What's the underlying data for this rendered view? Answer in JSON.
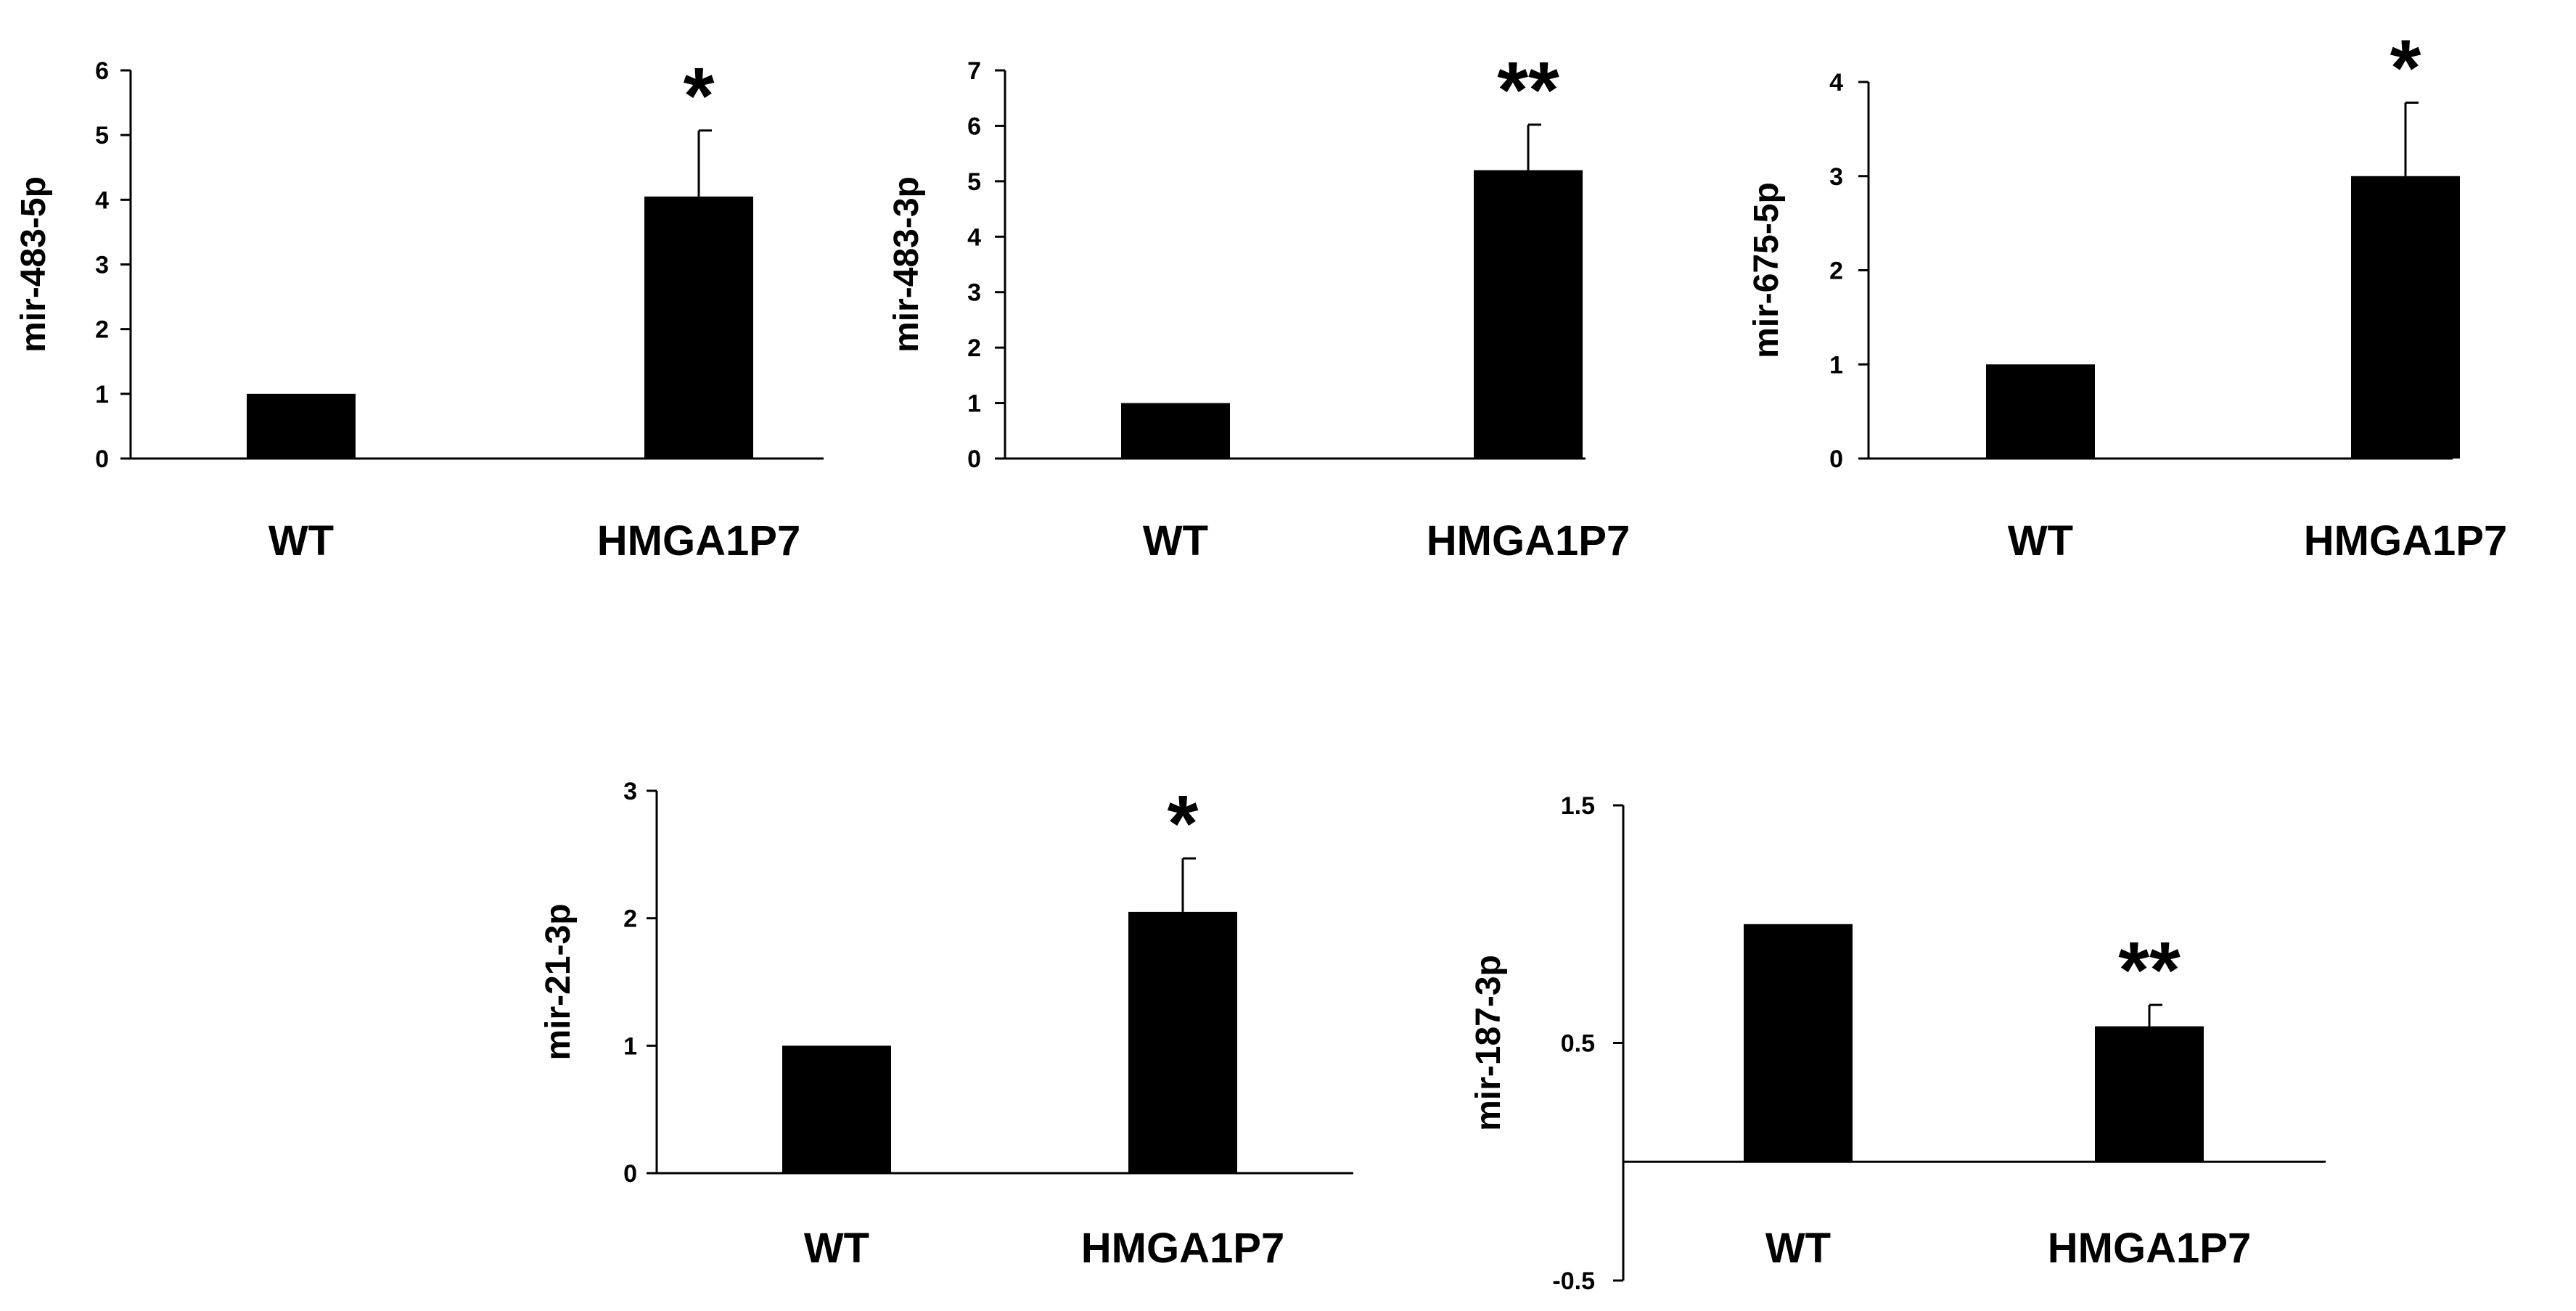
{
  "chart_data": [
    {
      "type": "bar",
      "ylabel": "mir-483-5p",
      "categories": [
        "WT",
        "HMGA1P7"
      ],
      "values": [
        1,
        4.05
      ],
      "errors": [
        0,
        1.02
      ],
      "significance": [
        "",
        "*"
      ],
      "ylim": [
        0,
        6
      ],
      "yticks": [
        "0",
        "1",
        "2",
        "3",
        "4",
        "5",
        "6"
      ],
      "ytick_values": [
        0,
        1,
        2,
        3,
        4,
        5,
        6
      ]
    },
    {
      "type": "bar",
      "ylabel": "mir-483-3p",
      "categories": [
        "WT",
        "HMGA1P7"
      ],
      "values": [
        1,
        5.2
      ],
      "errors": [
        0,
        0.82
      ],
      "significance": [
        "",
        "**"
      ],
      "ylim": [
        0,
        7
      ],
      "yticks": [
        "0",
        "1",
        "2",
        "3",
        "4",
        "5",
        "6",
        "7"
      ],
      "ytick_values": [
        0,
        1,
        2,
        3,
        4,
        5,
        6,
        7
      ]
    },
    {
      "type": "bar",
      "ylabel": "mir-675-5p",
      "categories": [
        "WT",
        "HMGA1P7"
      ],
      "values": [
        1,
        3.0
      ],
      "errors": [
        0,
        0.78
      ],
      "significance": [
        "",
        "*"
      ],
      "ylim": [
        0,
        4
      ],
      "yticks": [
        "0",
        "1",
        "2",
        "3",
        "4"
      ],
      "ytick_values": [
        0,
        1,
        2,
        3,
        4
      ]
    },
    {
      "type": "bar",
      "ylabel": "mir-21-3p",
      "categories": [
        "WT",
        "HMGA1P7"
      ],
      "values": [
        1,
        2.05
      ],
      "errors": [
        0,
        0.42
      ],
      "significance": [
        "",
        "*"
      ],
      "ylim": [
        0,
        3
      ],
      "yticks": [
        "0",
        "1",
        "2",
        "3"
      ],
      "ytick_values": [
        0,
        1,
        2,
        3
      ]
    },
    {
      "type": "bar",
      "ylabel": "mir-187-3p",
      "categories": [
        "WT",
        "HMGA1P7"
      ],
      "values": [
        1,
        0.57
      ],
      "errors": [
        0,
        0.09
      ],
      "significance": [
        "",
        "**"
      ],
      "ylim": [
        -0.5,
        1.5
      ],
      "yticks": [
        "-0.5",
        "0.5",
        "1.5"
      ],
      "ytick_values": [
        -0.5,
        0.5,
        1.5
      ]
    }
  ]
}
